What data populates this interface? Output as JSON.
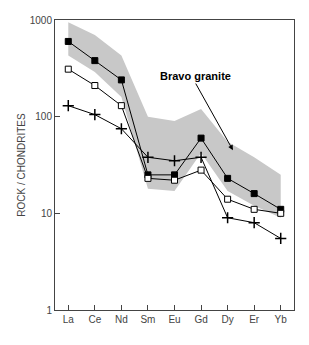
{
  "chart_data": {
    "type": "line",
    "categories": [
      "La",
      "Ce",
      "Nd",
      "Sm",
      "Eu",
      "Gd",
      "Dy",
      "Er",
      "Yb"
    ],
    "series": [
      {
        "color": "#000000",
        "marker": "square",
        "values": [
          600,
          380,
          240,
          25,
          25,
          60,
          23,
          16,
          11
        ]
      },
      {
        "color": "#000000",
        "marker": "square-open",
        "values": [
          310,
          210,
          130,
          23,
          22,
          28,
          14,
          11,
          10
        ]
      },
      {
        "color": "#000000",
        "marker": "plus",
        "values": [
          130,
          105,
          75,
          38,
          35,
          38,
          9,
          8,
          5.5
        ]
      }
    ],
    "band": {
      "color": "#c8c8c8",
      "lower": [
        430,
        290,
        160,
        18,
        17,
        42,
        17,
        12,
        9
      ],
      "upper": [
        950,
        700,
        430,
        100,
        90,
        120,
        55,
        38,
        25
      ]
    },
    "y_label": "ROCK / CHONDRITES",
    "log": "y",
    "ylim": [
      1,
      1000
    ],
    "yticks": [
      1,
      10,
      100,
      1000
    ],
    "grid": false,
    "annotations": [
      {
        "text": "Bravo granite",
        "x": 6.2,
        "y": 45,
        "text_x": 4.8,
        "text_y": 220
      }
    ]
  }
}
